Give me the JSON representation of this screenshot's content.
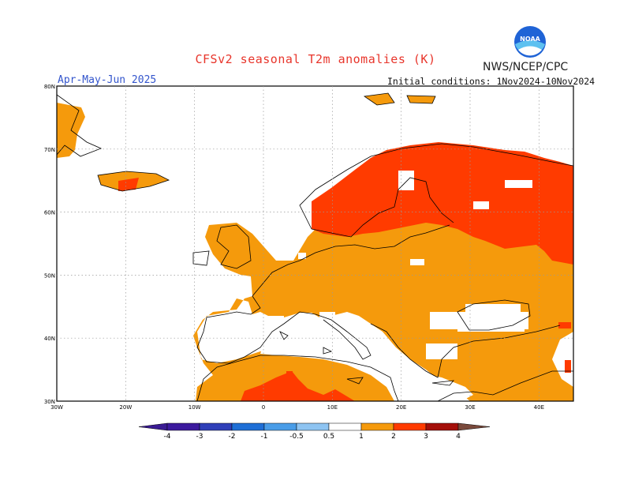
{
  "header": {
    "title": "CFSv2 seasonal T2m anomalies (K)",
    "organization": "NWS/NCEP/CPC",
    "logo_text": "NOAA",
    "season": "Apr-May-Jun 2025",
    "initial_conditions": "Initial conditions: 1Nov2024-10Nov2024"
  },
  "map": {
    "lat_ticks": [
      "80N",
      "70N",
      "60N",
      "50N",
      "40N",
      "30N"
    ],
    "lon_ticks": [
      "30W",
      "20W",
      "10W",
      "0",
      "10E",
      "20E",
      "30E",
      "40E"
    ],
    "lat_range": [
      30,
      80
    ],
    "lon_range": [
      -30,
      45
    ],
    "grid": "dotted"
  },
  "legend": {
    "bins": [
      {
        "label": "-4",
        "color": "#3c1a9e"
      },
      {
        "label": "-3",
        "color": "#2f3fb8"
      },
      {
        "label": "-2",
        "color": "#1f6fd6"
      },
      {
        "label": "-1",
        "color": "#4a9de8"
      },
      {
        "label": "-0.5",
        "color": "#8ec4f2"
      },
      {
        "label": "0.5",
        "color": "#ffffff"
      },
      {
        "label": "1",
        "color": "#f59a0c"
      },
      {
        "label": "2",
        "color": "#ff3b00"
      },
      {
        "label": "3",
        "color": "#a40f0a"
      },
      {
        "label": "4",
        "color": "#c8a090"
      }
    ],
    "low_end_color": "#3a1b93",
    "high_end_color": "#7a4a3c"
  },
  "colors": {
    "orange_anomaly": "#f59a0c",
    "red_anomaly": "#ff3b00",
    "title_red": "#e8352b",
    "season_blue": "#3355cc"
  }
}
